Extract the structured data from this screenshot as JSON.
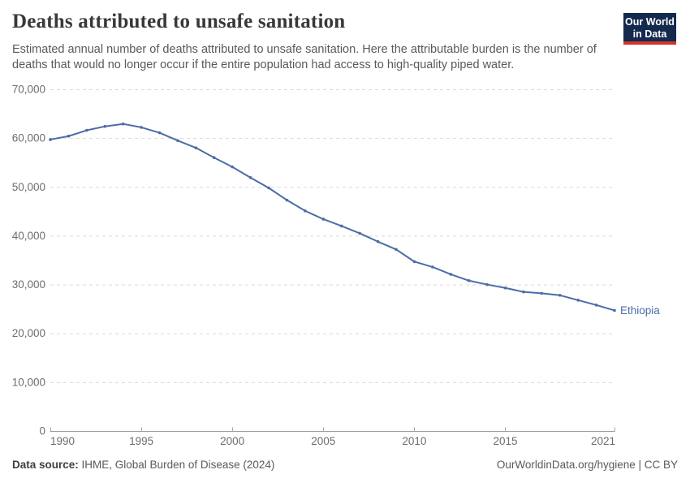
{
  "header": {
    "title": "Deaths attributed to unsafe sanitation",
    "subtitle": "Estimated annual number of deaths attributed to unsafe sanitation. Here the attributable burden is the number of deaths that would no longer occur if the entire population had access to high-quality piped water.",
    "logo": {
      "line1": "Our World",
      "line2": "in Data",
      "bg_color": "#14294e",
      "accent_color": "#d2342b"
    }
  },
  "chart_data": {
    "type": "line",
    "title": "Deaths attributed to unsafe sanitation",
    "xlabel": "",
    "ylabel": "",
    "x": [
      1990,
      1991,
      1992,
      1993,
      1994,
      1995,
      1996,
      1997,
      1998,
      1999,
      2000,
      2001,
      2002,
      2003,
      2004,
      2005,
      2006,
      2007,
      2008,
      2009,
      2010,
      2011,
      2012,
      2013,
      2014,
      2015,
      2016,
      2017,
      2018,
      2019,
      2020,
      2021
    ],
    "series": [
      {
        "name": "Ethiopia",
        "values": [
          59700,
          60400,
          61600,
          62400,
          62900,
          62200,
          61100,
          59500,
          58000,
          56000,
          54100,
          51900,
          49800,
          47300,
          45100,
          43400,
          42000,
          40500,
          38800,
          37200,
          34700,
          33600,
          32100,
          30800,
          30000,
          29300,
          28500,
          28200,
          27800,
          26800,
          25800,
          24700
        ]
      }
    ],
    "series_color": "#4c6da7",
    "x_ticks": [
      1990,
      1995,
      2000,
      2005,
      2010,
      2015,
      2021
    ],
    "y_ticks": [
      0,
      10000,
      20000,
      30000,
      40000,
      50000,
      60000,
      70000
    ],
    "xlim": [
      1990,
      2021
    ],
    "ylim": [
      0,
      70000
    ],
    "grid": "horizontal-dashed",
    "legend_position": "label-at-line-end"
  },
  "footer": {
    "source_label": "Data source:",
    "source_text": " IHME, Global Burden of Disease (2024)",
    "credit": "OurWorldinData.org/hygiene | CC BY"
  }
}
